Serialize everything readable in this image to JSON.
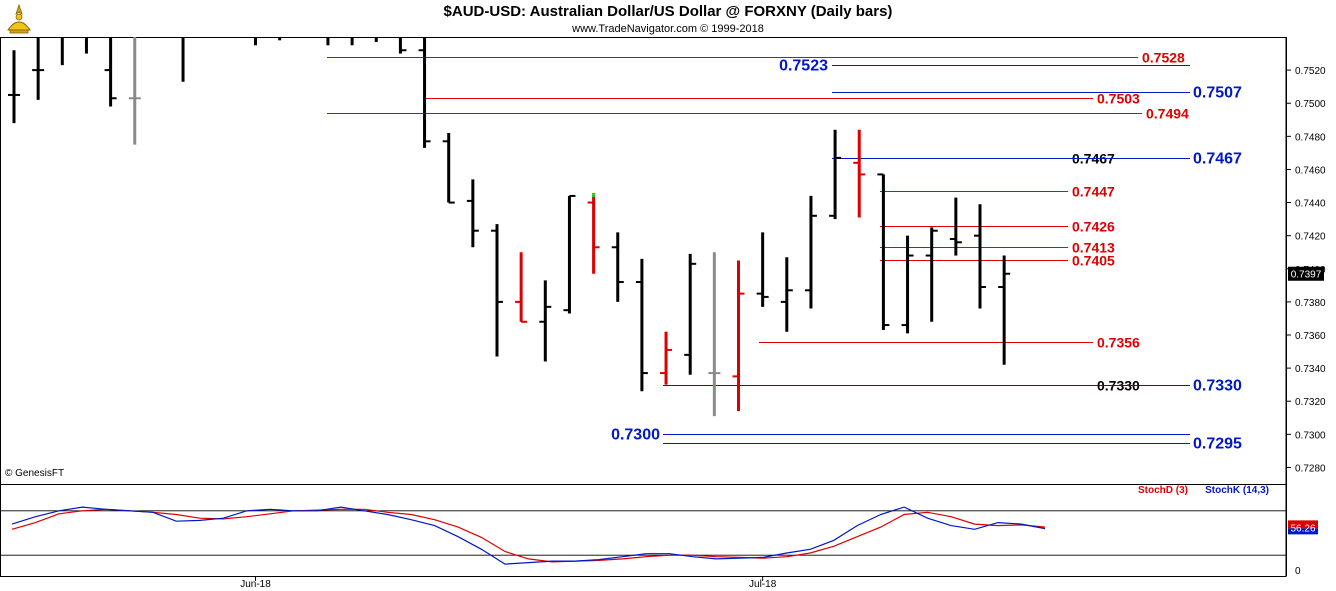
{
  "header": {
    "title": "$AUD-USD:  Australian Dollar/US Dollar @ FORXNY  (Daily bars)",
    "subtitle": "www.TradeNavigator.com © 1999-2018",
    "logo_icon": "trade-navigator-logo-icon",
    "copyright": "© GenesisFT"
  },
  "colors": {
    "red": "#dd0000",
    "blue": "#0018c8",
    "black": "#000000",
    "gray": "#8a8a8a",
    "green": "#22cc22",
    "stoch_d": "#dd0000",
    "stoch_k": "#0018c8"
  },
  "chart_data": {
    "type": "ohlc",
    "ylim": [
      0.727,
      0.754
    ],
    "yticks": [
      "0.7280",
      "0.7300",
      "0.7320",
      "0.7340",
      "0.7360",
      "0.7380",
      "0.7400",
      "0.7420",
      "0.7440",
      "0.7460",
      "0.7480",
      "0.7500",
      "0.7520"
    ],
    "y_values": [
      0.728,
      0.73,
      0.732,
      0.734,
      0.736,
      0.738,
      0.74,
      0.742,
      0.744,
      0.746,
      0.748,
      0.75,
      0.752
    ],
    "date_labels": [
      {
        "label": "Jun-18",
        "bar": 10
      },
      {
        "label": "Jul-18",
        "bar": 31
      }
    ],
    "last_price_label": "0.7397",
    "last_price": 0.7397,
    "bars": [
      {
        "o": 0.7505,
        "h": 0.7532,
        "l": 0.7488,
        "c": 0.7505,
        "color": "black"
      },
      {
        "o": 0.752,
        "h": 0.755,
        "l": 0.7502,
        "c": 0.752,
        "color": "black"
      },
      {
        "o": 0.7545,
        "h": 0.756,
        "l": 0.7523,
        "c": 0.7545,
        "color": "black"
      },
      {
        "o": 0.755,
        "h": 0.7565,
        "l": 0.753,
        "c": 0.7548,
        "color": "black"
      },
      {
        "o": 0.752,
        "h": 0.7545,
        "l": 0.7498,
        "c": 0.7503,
        "color": "black"
      },
      {
        "o": 0.7503,
        "h": 0.754,
        "l": 0.7475,
        "c": 0.7503,
        "color": "gray"
      },
      {
        "o": 0.7552,
        "h": 0.7565,
        "l": 0.754,
        "c": 0.7548,
        "color": "black"
      },
      {
        "o": 0.7545,
        "h": 0.7555,
        "l": 0.7513,
        "c": 0.754,
        "color": "black"
      },
      {
        "o": 0.7555,
        "h": 0.757,
        "l": 0.754,
        "c": 0.755,
        "color": "black"
      },
      {
        "o": 0.7555,
        "h": 0.7568,
        "l": 0.754,
        "c": 0.755,
        "color": "black"
      },
      {
        "o": 0.755,
        "h": 0.7565,
        "l": 0.7535,
        "c": 0.7545,
        "color": "black"
      },
      {
        "o": 0.755,
        "h": 0.757,
        "l": 0.7538,
        "c": 0.755,
        "color": "black"
      },
      {
        "o": 0.755,
        "h": 0.7565,
        "l": 0.754,
        "c": 0.7548,
        "color": "black"
      },
      {
        "o": 0.7545,
        "h": 0.756,
        "l": 0.7535,
        "c": 0.7545,
        "color": "black"
      },
      {
        "o": 0.7548,
        "h": 0.756,
        "l": 0.7535,
        "c": 0.754,
        "color": "black"
      },
      {
        "o": 0.755,
        "h": 0.7565,
        "l": 0.7537,
        "c": 0.7545,
        "color": "black"
      },
      {
        "o": 0.7548,
        "h": 0.756,
        "l": 0.753,
        "c": 0.7532,
        "color": "black"
      },
      {
        "o": 0.7532,
        "h": 0.7548,
        "l": 0.7473,
        "c": 0.7477,
        "color": "black"
      },
      {
        "o": 0.7477,
        "h": 0.7482,
        "l": 0.744,
        "c": 0.744,
        "color": "black"
      },
      {
        "o": 0.7441,
        "h": 0.7454,
        "l": 0.7413,
        "c": 0.7423,
        "color": "black"
      },
      {
        "o": 0.7423,
        "h": 0.7427,
        "l": 0.7347,
        "c": 0.738,
        "color": "black"
      },
      {
        "o": 0.738,
        "h": 0.741,
        "l": 0.7368,
        "c": 0.7368,
        "color": "red"
      },
      {
        "o": 0.7368,
        "h": 0.7393,
        "l": 0.7344,
        "c": 0.7377,
        "color": "black"
      },
      {
        "o": 0.7375,
        "h": 0.7444,
        "l": 0.7373,
        "c": 0.7444,
        "color": "black"
      },
      {
        "o": 0.744,
        "h": 0.7444,
        "l": 0.7397,
        "c": 0.7413,
        "color": "red",
        "green_tip": true
      },
      {
        "o": 0.7413,
        "h": 0.7422,
        "l": 0.738,
        "c": 0.7392,
        "color": "black"
      },
      {
        "o": 0.7392,
        "h": 0.7406,
        "l": 0.7326,
        "c": 0.7337,
        "color": "black"
      },
      {
        "o": 0.7337,
        "h": 0.7362,
        "l": 0.733,
        "c": 0.7351,
        "color": "red"
      },
      {
        "o": 0.7348,
        "h": 0.7409,
        "l": 0.7336,
        "c": 0.7403,
        "color": "black"
      },
      {
        "o": 0.7337,
        "h": 0.741,
        "l": 0.7311,
        "c": 0.7337,
        "color": "gray"
      },
      {
        "o": 0.7335,
        "h": 0.7405,
        "l": 0.7314,
        "c": 0.7385,
        "color": "red"
      },
      {
        "o": 0.7385,
        "h": 0.7422,
        "l": 0.7377,
        "c": 0.7383,
        "color": "black"
      },
      {
        "o": 0.738,
        "h": 0.7407,
        "l": 0.7362,
        "c": 0.7387,
        "color": "black"
      },
      {
        "o": 0.7387,
        "h": 0.7444,
        "l": 0.7376,
        "c": 0.7432,
        "color": "black"
      },
      {
        "o": 0.7432,
        "h": 0.7484,
        "l": 0.743,
        "c": 0.7467,
        "color": "black"
      },
      {
        "o": 0.7464,
        "h": 0.7484,
        "l": 0.7431,
        "c": 0.7457,
        "color": "red"
      },
      {
        "o": 0.7457,
        "h": 0.7457,
        "l": 0.7363,
        "c": 0.7366,
        "color": "black"
      },
      {
        "o": 0.7366,
        "h": 0.742,
        "l": 0.7361,
        "c": 0.7408,
        "color": "black"
      },
      {
        "o": 0.7408,
        "h": 0.7425,
        "l": 0.7368,
        "c": 0.7423,
        "color": "black"
      },
      {
        "o": 0.7418,
        "h": 0.7443,
        "l": 0.7408,
        "c": 0.7416,
        "color": "black"
      },
      {
        "o": 0.742,
        "h": 0.7439,
        "l": 0.7376,
        "c": 0.7389,
        "color": "black"
      },
      {
        "o": 0.7389,
        "h": 0.7408,
        "l": 0.7342,
        "c": 0.7397,
        "color": "black"
      }
    ],
    "hidden_bars_note": "",
    "levels": [
      {
        "label": "0.7528",
        "value": 0.7528,
        "color": "red",
        "x1": 327,
        "x2": 1138,
        "label_x": 1142,
        "label_side": "right"
      },
      {
        "label": "0.7523",
        "value": 0.7523,
        "color": "blue",
        "x1": 832,
        "x2": 1190,
        "label_x": 828,
        "label_side": "left"
      },
      {
        "label": "0.7507",
        "value": 0.7507,
        "color": "blue",
        "x1": 832,
        "x2": 1190,
        "label_x": 1193,
        "label_side": "right"
      },
      {
        "label": "0.7503",
        "value": 0.7503,
        "color": "red",
        "x1": 423,
        "x2": 1093,
        "label_x": 1097,
        "label_side": "right"
      },
      {
        "label": "0.7494",
        "value": 0.7494,
        "color": "red",
        "x1": 327,
        "x2": 1142,
        "label_x": 1146,
        "label_side": "right"
      },
      {
        "label": "0.7467",
        "value": 0.7467,
        "color": "black",
        "x1": 880,
        "x2": 1068,
        "label_x": 1072,
        "label_side": "right"
      },
      {
        "label": "0.7467",
        "value": 0.7467,
        "color": "blue",
        "x1": 832,
        "x2": 1190,
        "label_x": 1193,
        "label_side": "right"
      },
      {
        "label": "0.7447",
        "value": 0.7447,
        "color": "red",
        "x1": 880,
        "x2": 1068,
        "label_x": 1072,
        "label_side": "right"
      },
      {
        "label": "0.7426",
        "value": 0.7426,
        "color": "red",
        "x1": 880,
        "x2": 1068,
        "label_x": 1072,
        "label_side": "right"
      },
      {
        "label": "0.7413",
        "value": 0.7413,
        "color": "red",
        "x1": 880,
        "x2": 1068,
        "label_x": 1072,
        "label_side": "right"
      },
      {
        "label": "0.7405",
        "value": 0.7405,
        "color": "red",
        "x1": 880,
        "x2": 1068,
        "label_x": 1072,
        "label_side": "right"
      },
      {
        "label": "0.7356",
        "value": 0.7356,
        "color": "red",
        "x1": 759,
        "x2": 1093,
        "label_x": 1097,
        "label_side": "right"
      },
      {
        "label": "0.7330",
        "value": 0.733,
        "color": "black",
        "x1": 663,
        "x2": 1093,
        "label_x": 1097,
        "label_side": "right"
      },
      {
        "label": "0.7330",
        "value": 0.733,
        "color": "blue",
        "x1": 663,
        "x2": 1190,
        "label_x": 1193,
        "label_side": "right"
      },
      {
        "label": "0.7300",
        "value": 0.73,
        "color": "blue",
        "x1": 663,
        "x2": 1190,
        "label_x": 660,
        "label_side": "left"
      },
      {
        "label": "0.7295",
        "value": 0.7295,
        "color": "blue",
        "x1": 663,
        "x2": 1190,
        "label_x": 1193,
        "label_side": "right"
      }
    ],
    "stochastic": {
      "legend_d": "StochD (3)",
      "legend_k": "StochK (14,3)",
      "tick_0": "0",
      "last_value_label": "56.26",
      "last_value": 56.26,
      "ylim": [
        0,
        100
      ],
      "upper_line": 80,
      "lower_line": 20,
      "k": [
        62,
        72,
        80,
        85,
        82,
        80,
        78,
        66,
        67,
        70,
        80,
        82,
        80,
        80,
        85,
        80,
        75,
        68,
        60,
        45,
        28,
        8,
        10,
        12,
        12,
        14,
        18,
        22,
        22,
        18,
        15,
        16,
        17,
        23,
        28,
        40,
        60,
        75,
        85,
        70,
        60,
        55,
        64,
        62,
        56
      ],
      "d": [
        55,
        64,
        76,
        80,
        82,
        80,
        78,
        75,
        70,
        69,
        72,
        76,
        80,
        81,
        82,
        82,
        78,
        75,
        68,
        58,
        44,
        25,
        15,
        11,
        12,
        13,
        15,
        18,
        20,
        20,
        18,
        17,
        16,
        18,
        23,
        32,
        45,
        58,
        75,
        78,
        72,
        62,
        60,
        61,
        58
      ]
    }
  }
}
